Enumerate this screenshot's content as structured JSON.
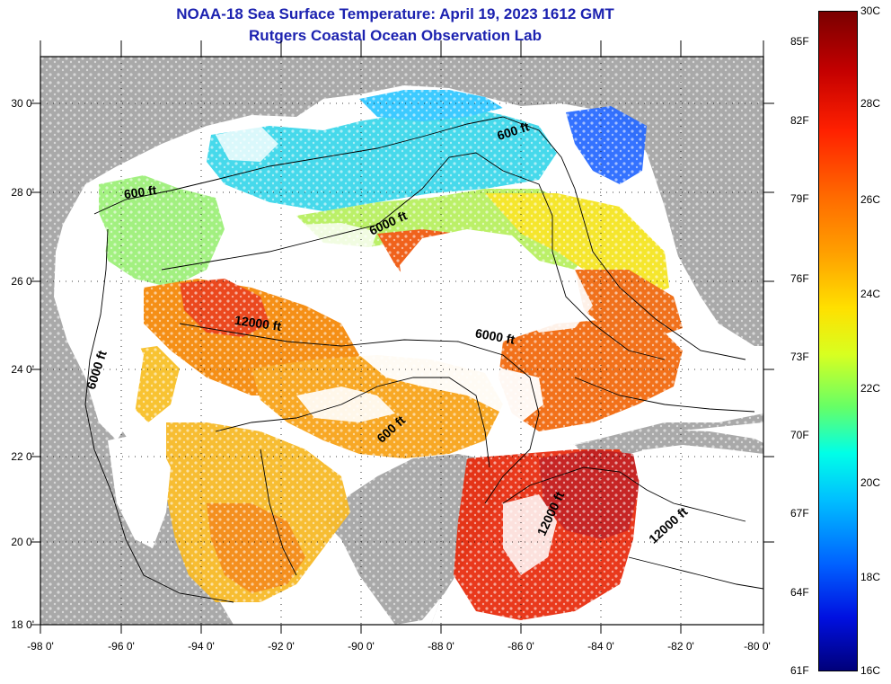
{
  "title": {
    "line1": "NOAA-18 Sea Surface Temperature:  April 19, 2023 1612 GMT",
    "line2": "Rutgers Coastal Ocean Observation Lab"
  },
  "map": {
    "lon_range": [
      -98,
      -80
    ],
    "lat_range": [
      18,
      31
    ],
    "land_color": "#a9a9a9",
    "cloud_color": "#ffffff",
    "graticule": "dotted",
    "lat_labels": [
      {
        "lat": 30,
        "text": "30 0'"
      },
      {
        "lat": 28,
        "text": "28 0'"
      },
      {
        "lat": 26,
        "text": "26 0'"
      },
      {
        "lat": 24,
        "text": "24 0'"
      },
      {
        "lat": 22,
        "text": "22 0'"
      },
      {
        "lat": 20,
        "text": "20 0'"
      },
      {
        "lat": 18,
        "text": "18 0'"
      }
    ],
    "lon_labels": [
      {
        "lon": -98,
        "text": "-98 0'"
      },
      {
        "lon": -96,
        "text": "-96 0'"
      },
      {
        "lon": -94,
        "text": "-94 0'"
      },
      {
        "lon": -92,
        "text": "-92 0'"
      },
      {
        "lon": -90,
        "text": "-90 0'"
      },
      {
        "lon": -88,
        "text": "-88 0'"
      },
      {
        "lon": -86,
        "text": "-86 0'"
      },
      {
        "lon": -84,
        "text": "-84 0'"
      },
      {
        "lon": -82,
        "text": "-82 0'"
      },
      {
        "lon": -80,
        "text": "-80 0'"
      }
    ],
    "contour_labels": [
      {
        "text": "600 ft",
        "lon": -86.2,
        "lat": 29.2,
        "angle": -18
      },
      {
        "text": "600 ft",
        "lon": -95.5,
        "lat": 27.8,
        "angle": -8
      },
      {
        "text": "6000 ft",
        "lon": -89.3,
        "lat": 27.1,
        "angle": -25
      },
      {
        "text": "12000 ft",
        "lon": -92.6,
        "lat": 24.8,
        "angle": 8
      },
      {
        "text": "6000 ft",
        "lon": -86.7,
        "lat": 24.5,
        "angle": 10
      },
      {
        "text": "6000 ft",
        "lon": -96.5,
        "lat": 23.8,
        "angle": -72
      },
      {
        "text": "600 ft",
        "lon": -89.2,
        "lat": 22.4,
        "angle": -42
      },
      {
        "text": "12000 ft",
        "lon": -85.2,
        "lat": 20.5,
        "angle": -65
      },
      {
        "text": "12000 ft",
        "lon": -82.3,
        "lat": 20.2,
        "angle": -42
      }
    ]
  },
  "colorbar": {
    "top_c": "30C",
    "bottom_c": "16C",
    "celsius_labels": [
      "28C",
      "26C",
      "24C",
      "22C",
      "20C",
      "18C"
    ],
    "fahrenheit_labels": [
      "85F",
      "82F",
      "79F",
      "76F",
      "73F",
      "70F",
      "67F",
      "64F",
      "61F"
    ]
  }
}
